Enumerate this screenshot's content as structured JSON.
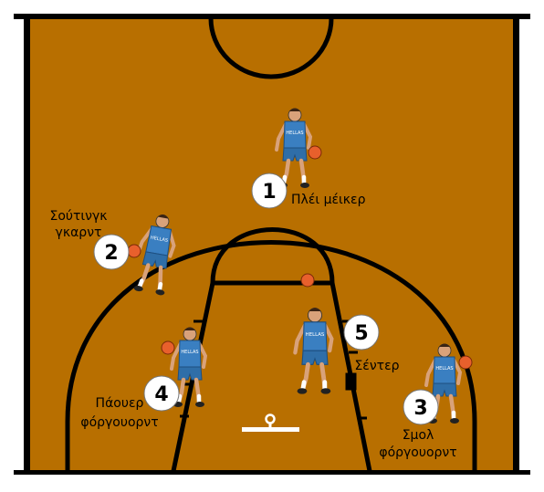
{
  "colors": {
    "court": "#b86f00",
    "lines": "#000000",
    "jersey": "#3a7fc1",
    "ball": "#e8602c",
    "skin": "#d9a27a",
    "circle": "#ffffff"
  },
  "players": [
    {
      "number": "1",
      "label_lines": [
        "Πλέι μέικερ"
      ]
    },
    {
      "number": "2",
      "label_lines": [
        "Σούτινγκ",
        "γκαρντ"
      ]
    },
    {
      "number": "3",
      "label_lines": [
        "Σμολ",
        "φόργουορντ"
      ]
    },
    {
      "number": "4",
      "label_lines": [
        "Πάουερ",
        "φόργουορντ"
      ]
    },
    {
      "number": "5",
      "label_lines": [
        "Σέντερ"
      ]
    }
  ],
  "jersey_text": "HELLAS"
}
